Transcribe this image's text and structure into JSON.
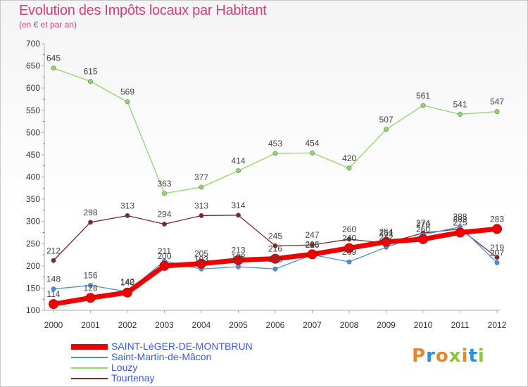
{
  "header": {
    "title": "Evolution des Impôts locaux par Habitant",
    "subtitle": "(en € et par an)"
  },
  "logo": {
    "text": "Proxiti",
    "colors": [
      "#e8862a",
      "#2f8ed8",
      "#e8862a",
      "#8bc53f",
      "#e8862a",
      "#2f8ed8",
      "#8bc53f"
    ]
  },
  "chart_data": {
    "type": "line",
    "x": [
      "2000",
      "2001",
      "2002",
      "2003",
      "2004",
      "2005",
      "2006",
      "2007",
      "2008",
      "2009",
      "2010",
      "2011",
      "2012"
    ],
    "ylim": [
      100,
      700
    ],
    "yticks": [
      100,
      150,
      200,
      250,
      300,
      350,
      400,
      450,
      500,
      550,
      600,
      650,
      700
    ],
    "grid": false,
    "legend_position": "bottom",
    "series": [
      {
        "name": "SAINT-LéGER-DE-MONTBRUN",
        "color": "#ee0000",
        "values": [
          114,
          128,
          140,
          200,
          205,
          213,
          216,
          226,
          240,
          254,
          260,
          275,
          283
        ],
        "labels": [
          "114",
          "128",
          "140",
          "200",
          "205",
          "213",
          "216",
          "226",
          "240",
          "254",
          "260",
          "275",
          "283"
        ],
        "width": "thick"
      },
      {
        "name": "Saint-Martin-de-Mâcon",
        "color": "#4a90d9",
        "values": [
          148,
          156,
          142,
          211,
          193,
          198,
          193,
          225,
          209,
          242,
          270,
          288,
          207
        ],
        "labels": [
          "148",
          "156",
          "142",
          "211",
          "193",
          "198",
          "193",
          "225",
          "209",
          "242",
          "270",
          "288",
          "207"
        ],
        "width": "thin"
      },
      {
        "name": "Louzy",
        "color": "#8ed66b",
        "values": [
          645,
          615,
          569,
          363,
          377,
          414,
          453,
          454,
          420,
          507,
          561,
          541,
          547
        ],
        "labels": [
          "645",
          "615",
          "569",
          "363",
          "377",
          "414",
          "453",
          "454",
          "420",
          "507",
          "561",
          "541",
          "547"
        ],
        "width": "thin"
      },
      {
        "name": "Tourtenay",
        "color": "#7a2a2a",
        "values": [
          212,
          298,
          313,
          294,
          313,
          314,
          245,
          247,
          260,
          251,
          274,
          283,
          219
        ],
        "labels": [
          "212",
          "298",
          "313",
          "294",
          "313",
          "314",
          "245",
          "247",
          "260",
          "251",
          "274",
          "283",
          "219"
        ],
        "width": "thin"
      }
    ]
  }
}
